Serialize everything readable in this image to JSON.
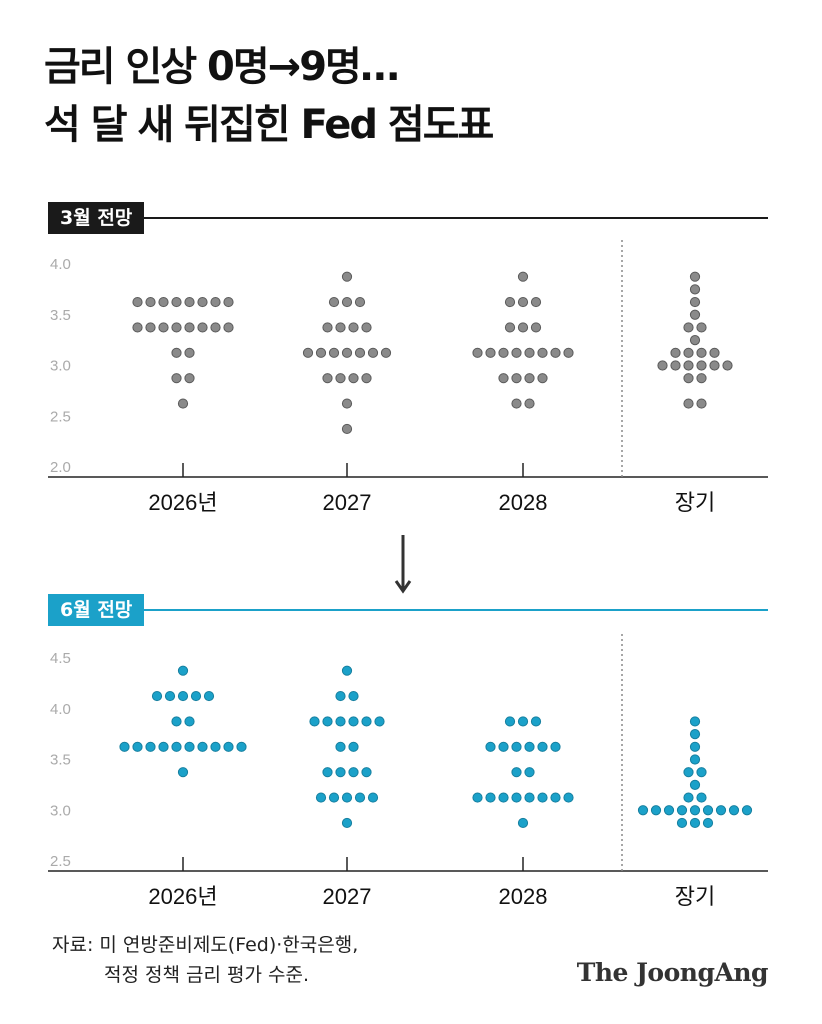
{
  "title": {
    "line1": "금리 인상 0명→9명…",
    "line2": "석 달 새 뒤집힌 Fed 점도표"
  },
  "colors": {
    "panel1_accent": "#1a1a1a",
    "panel1_dot": "#8a8a8a",
    "panel2_accent": "#1ba1c9",
    "panel2_dot": "#1ba1c9",
    "axis_text": "#aaaaaa"
  },
  "source": {
    "line1": "자료: 미 연방준비제도(Fed)·한국은행,",
    "line2": "적정 정책 금리 평가 수준."
  },
  "logo": "The JoongAng",
  "chart_data": [
    {
      "type": "scatter",
      "label": "3월 전망",
      "categories": [
        "2026년",
        "2027",
        "2028",
        "장기"
      ],
      "y_ticks": [
        "2.0",
        "2.5",
        "3.0",
        "3.5",
        "4.0"
      ],
      "ylim": [
        2.0,
        4.0
      ],
      "grid": false,
      "dots": [
        [
          {
            "y": 3.625,
            "n": 8
          },
          {
            "y": 3.375,
            "n": 8
          },
          {
            "y": 3.125,
            "n": 2
          },
          {
            "y": 2.875,
            "n": 2
          },
          {
            "y": 2.625,
            "n": 1
          }
        ],
        [
          {
            "y": 3.875,
            "n": 1
          },
          {
            "y": 3.625,
            "n": 3
          },
          {
            "y": 3.375,
            "n": 4
          },
          {
            "y": 3.125,
            "n": 7
          },
          {
            "y": 2.875,
            "n": 4
          },
          {
            "y": 2.625,
            "n": 1
          },
          {
            "y": 2.375,
            "n": 1
          }
        ],
        [
          {
            "y": 3.875,
            "n": 1
          },
          {
            "y": 3.625,
            "n": 3
          },
          {
            "y": 3.375,
            "n": 3
          },
          {
            "y": 3.125,
            "n": 8
          },
          {
            "y": 2.875,
            "n": 4
          },
          {
            "y": 2.625,
            "n": 2
          }
        ],
        [
          {
            "y": 3.875,
            "n": 1
          },
          {
            "y": 3.75,
            "n": 1
          },
          {
            "y": 3.625,
            "n": 1
          },
          {
            "y": 3.5,
            "n": 1
          },
          {
            "y": 3.375,
            "n": 2
          },
          {
            "y": 3.25,
            "n": 1
          },
          {
            "y": 3.125,
            "n": 4
          },
          {
            "y": 3.0,
            "n": 6
          },
          {
            "y": 2.875,
            "n": 2
          },
          {
            "y": 2.625,
            "n": 2
          }
        ]
      ]
    },
    {
      "type": "scatter",
      "label": "6월 전망",
      "categories": [
        "2026년",
        "2027",
        "2028",
        "장기"
      ],
      "y_ticks": [
        "2.5",
        "3.0",
        "3.5",
        "4.0",
        "4.5"
      ],
      "ylim": [
        2.5,
        4.5
      ],
      "grid": false,
      "dots": [
        [
          {
            "y": 4.375,
            "n": 1
          },
          {
            "y": 4.125,
            "n": 5
          },
          {
            "y": 3.875,
            "n": 2
          },
          {
            "y": 3.625,
            "n": 10
          },
          {
            "y": 3.375,
            "n": 1
          }
        ],
        [
          {
            "y": 4.375,
            "n": 1
          },
          {
            "y": 4.125,
            "n": 2
          },
          {
            "y": 3.875,
            "n": 6
          },
          {
            "y": 3.625,
            "n": 2
          },
          {
            "y": 3.375,
            "n": 4
          },
          {
            "y": 3.125,
            "n": 5
          },
          {
            "y": 2.875,
            "n": 1
          }
        ],
        [
          {
            "y": 3.875,
            "n": 3
          },
          {
            "y": 3.625,
            "n": 6
          },
          {
            "y": 3.375,
            "n": 2
          },
          {
            "y": 3.125,
            "n": 8
          },
          {
            "y": 2.875,
            "n": 1
          }
        ],
        [
          {
            "y": 3.875,
            "n": 1
          },
          {
            "y": 3.75,
            "n": 1
          },
          {
            "y": 3.625,
            "n": 1
          },
          {
            "y": 3.5,
            "n": 1
          },
          {
            "y": 3.375,
            "n": 2
          },
          {
            "y": 3.25,
            "n": 1
          },
          {
            "y": 3.125,
            "n": 2
          },
          {
            "y": 3.0,
            "n": 9
          },
          {
            "y": 2.875,
            "n": 3
          }
        ]
      ]
    }
  ]
}
